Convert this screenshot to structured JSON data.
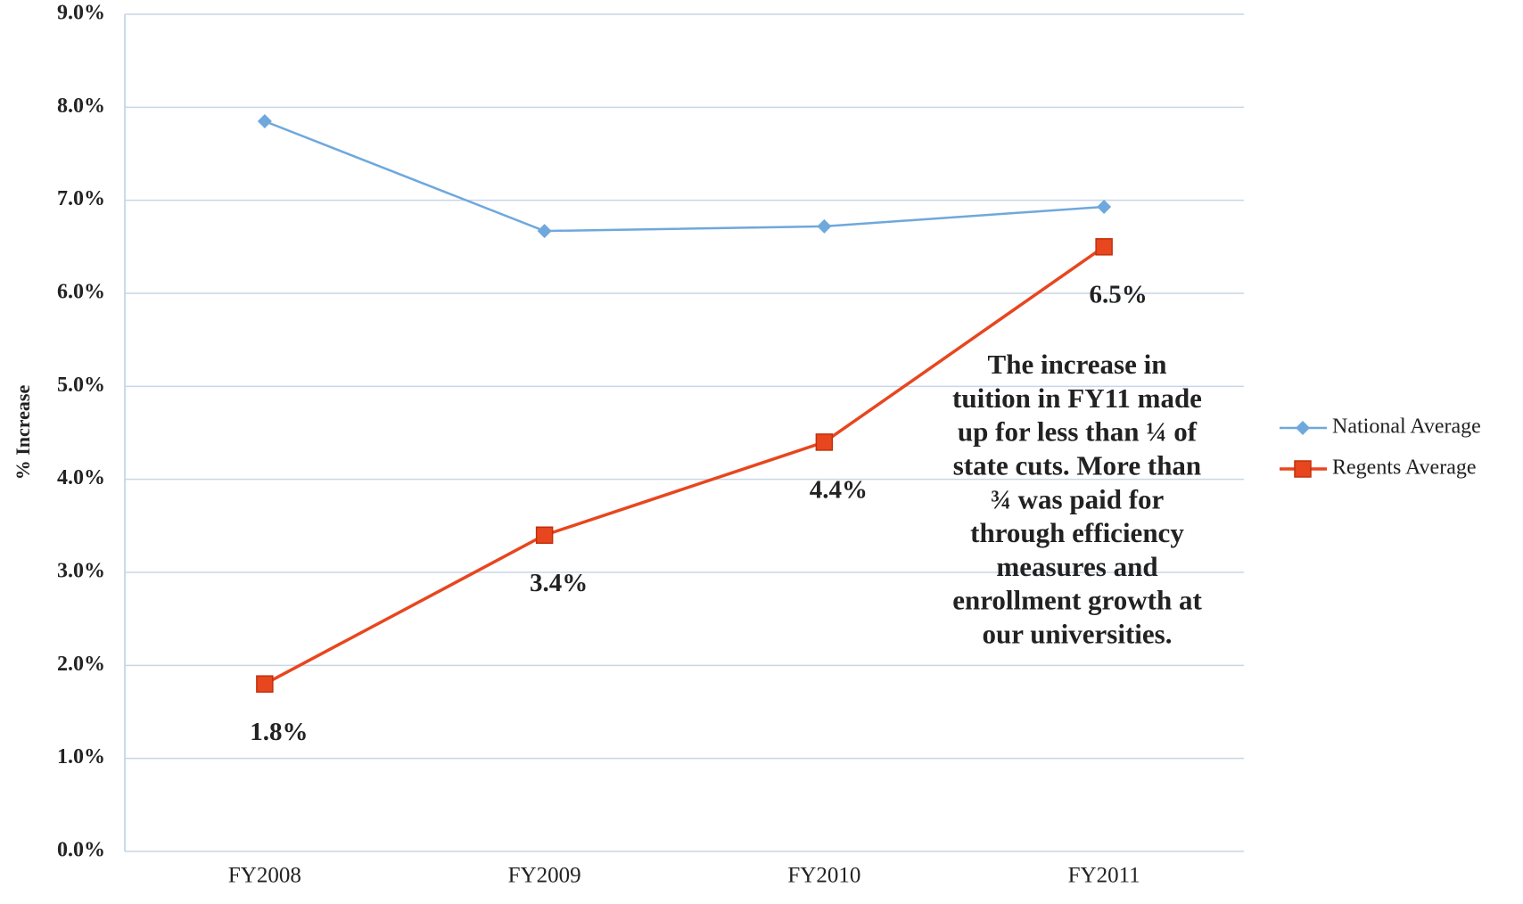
{
  "chart_data": {
    "type": "line",
    "categories": [
      "FY2008",
      "FY2009",
      "FY2010",
      "FY2011"
    ],
    "series": [
      {
        "name": "National Average",
        "color": "#6fa8dc",
        "marker": "diamond",
        "values": [
          7.85,
          6.67,
          6.72,
          6.93
        ]
      },
      {
        "name": "Regents Average",
        "color": "#e8461e",
        "marker": "square",
        "values": [
          1.8,
          3.4,
          4.4,
          6.5
        ],
        "value_labels": [
          "1.8%",
          "3.4%",
          "4.4%",
          "6.5%"
        ]
      }
    ],
    "y_label": "% Increase",
    "ylim": [
      0,
      9
    ],
    "yticks": [
      {
        "value": 0,
        "label": "0.0%"
      },
      {
        "value": 1,
        "label": "1.0%"
      },
      {
        "value": 2,
        "label": "2.0%"
      },
      {
        "value": 3,
        "label": "3.0%"
      },
      {
        "value": 4,
        "label": "4.0%"
      },
      {
        "value": 5,
        "label": "5.0%"
      },
      {
        "value": 6,
        "label": "6.0%"
      },
      {
        "value": 7,
        "label": "7.0%"
      },
      {
        "value": 8,
        "label": "8.0%"
      },
      {
        "value": 9,
        "label": "9.0%"
      }
    ],
    "grid": true,
    "legend": "right",
    "annotation": [
      "The increase in",
      "tuition in FY11 made",
      "up for less than ¼ of",
      "state cuts.  More than",
      "¾ was paid for",
      "through efficiency",
      "measures and",
      "enrollment growth at",
      "our universities."
    ]
  }
}
